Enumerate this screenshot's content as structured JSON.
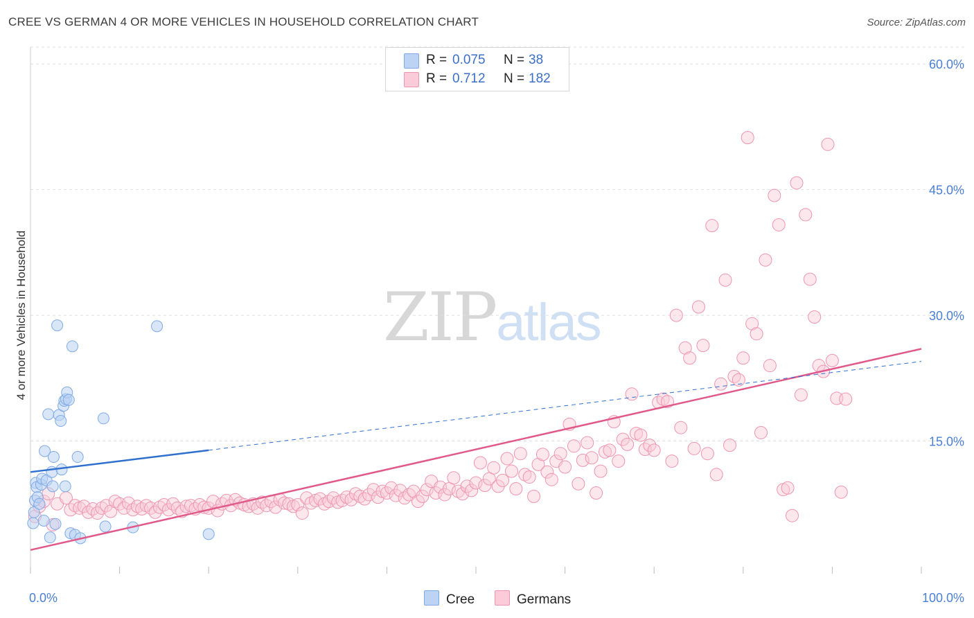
{
  "title": "CREE VS GERMAN 4 OR MORE VEHICLES IN HOUSEHOLD CORRELATION CHART",
  "source": "Source: ZipAtlas.com",
  "watermark": {
    "zip": "ZIP",
    "atlas": "atlas"
  },
  "legend": {
    "rows": [
      {
        "r_label": "R =",
        "r_value": "0.075",
        "n_label": "N =",
        "n_value": "38",
        "color": "#a9c8f0"
      },
      {
        "r_label": "R =",
        "r_value": "0.712",
        "n_label": "N =",
        "n_value": "182",
        "color": "#f7b8cb"
      }
    ]
  },
  "bottom_legend": {
    "cree": "Cree",
    "germans": "Germans"
  },
  "colors": {
    "cree_fill": "#b9d2f3",
    "cree_stroke": "#7eaae6",
    "cree_line": "#2f6fcd",
    "german_fill": "#f9c9d7",
    "german_stroke": "#ee94b0",
    "german_line": "#e0598a",
    "grid": "#dddddd",
    "tick_text": "#4a7fd4"
  },
  "chart_data": {
    "type": "scatter",
    "ylabel": "4 or more Vehicles in Household",
    "xlim": [
      0,
      100
    ],
    "ylim": [
      0,
      62
    ],
    "x_tick_labels": [
      "0.0%",
      "100.0%"
    ],
    "y_ticks": [
      15,
      30,
      45,
      60
    ],
    "y_tick_labels": [
      "15.0%",
      "30.0%",
      "45.0%",
      "60.0%"
    ],
    "grid": true,
    "legend_position": "top-center",
    "series": [
      {
        "name": "Cree",
        "points": [
          [
            0.3,
            5.2
          ],
          [
            0.4,
            6.5
          ],
          [
            0.5,
            7.9
          ],
          [
            0.6,
            10.0
          ],
          [
            0.7,
            9.5
          ],
          [
            0.8,
            8.3
          ],
          [
            1.0,
            7.5
          ],
          [
            1.2,
            9.8
          ],
          [
            1.3,
            10.5
          ],
          [
            1.5,
            5.5
          ],
          [
            1.6,
            13.8
          ],
          [
            1.8,
            10.3
          ],
          [
            2.0,
            18.2
          ],
          [
            2.2,
            3.5
          ],
          [
            2.4,
            11.3
          ],
          [
            2.5,
            9.6
          ],
          [
            2.6,
            13.1
          ],
          [
            2.8,
            5.1
          ],
          [
            3.0,
            28.8
          ],
          [
            3.2,
            18.1
          ],
          [
            3.4,
            17.4
          ],
          [
            3.5,
            11.6
          ],
          [
            3.7,
            19.2
          ],
          [
            3.8,
            19.8
          ],
          [
            3.9,
            9.6
          ],
          [
            4.0,
            20.0
          ],
          [
            4.1,
            20.8
          ],
          [
            4.3,
            19.9
          ],
          [
            4.5,
            4.0
          ],
          [
            4.7,
            26.3
          ],
          [
            5.0,
            3.8
          ],
          [
            5.3,
            13.1
          ],
          [
            5.6,
            3.4
          ],
          [
            8.2,
            17.7
          ],
          [
            8.4,
            4.8
          ],
          [
            11.5,
            4.7
          ],
          [
            14.2,
            28.7
          ],
          [
            20.0,
            3.9
          ]
        ],
        "trend_solid": [
          [
            0,
            11.3
          ],
          [
            20,
            13.9
          ]
        ],
        "trend_dashed": [
          [
            20,
            13.9
          ],
          [
            100,
            24.5
          ]
        ]
      },
      {
        "name": "Germans",
        "points": [
          [
            0.5,
            6.0
          ],
          [
            1.0,
            7.2
          ],
          [
            1.5,
            7.8
          ],
          [
            2.0,
            8.7
          ],
          [
            2.5,
            5.0
          ],
          [
            3.0,
            7.5
          ],
          [
            4.0,
            8.2
          ],
          [
            4.5,
            6.8
          ],
          [
            5.0,
            7.3
          ],
          [
            5.5,
            7.0
          ],
          [
            6.0,
            7.2
          ],
          [
            6.5,
            6.5
          ],
          [
            7.0,
            6.9
          ],
          [
            7.5,
            6.4
          ],
          [
            8.0,
            7.0
          ],
          [
            8.5,
            7.3
          ],
          [
            9.0,
            6.6
          ],
          [
            9.5,
            7.8
          ],
          [
            10.0,
            7.5
          ],
          [
            10.5,
            7.0
          ],
          [
            11.0,
            7.6
          ],
          [
            11.5,
            6.8
          ],
          [
            12.0,
            7.2
          ],
          [
            12.5,
            6.9
          ],
          [
            13.0,
            7.3
          ],
          [
            13.5,
            7.0
          ],
          [
            14.0,
            6.5
          ],
          [
            14.5,
            7.1
          ],
          [
            15.0,
            7.4
          ],
          [
            15.5,
            6.8
          ],
          [
            16.0,
            7.5
          ],
          [
            16.5,
            7.0
          ],
          [
            17.0,
            6.6
          ],
          [
            17.5,
            7.2
          ],
          [
            18.0,
            7.3
          ],
          [
            18.5,
            6.9
          ],
          [
            19.0,
            7.4
          ],
          [
            19.5,
            7.1
          ],
          [
            20.0,
            7.0
          ],
          [
            20.5,
            7.8
          ],
          [
            21.0,
            6.7
          ],
          [
            21.5,
            7.5
          ],
          [
            22.0,
            7.9
          ],
          [
            22.5,
            7.3
          ],
          [
            23.0,
            8.0
          ],
          [
            23.5,
            7.6
          ],
          [
            24.0,
            7.4
          ],
          [
            24.5,
            7.2
          ],
          [
            25.0,
            7.5
          ],
          [
            25.5,
            7.0
          ],
          [
            26.0,
            7.7
          ],
          [
            26.5,
            7.3
          ],
          [
            27.0,
            7.8
          ],
          [
            27.5,
            7.1
          ],
          [
            28.0,
            8.0
          ],
          [
            28.5,
            7.6
          ],
          [
            29.0,
            7.5
          ],
          [
            29.5,
            7.2
          ],
          [
            30.0,
            7.4
          ],
          [
            30.5,
            6.4
          ],
          [
            31.0,
            8.2
          ],
          [
            31.5,
            7.6
          ],
          [
            32.0,
            7.9
          ],
          [
            32.5,
            8.1
          ],
          [
            33.0,
            7.5
          ],
          [
            33.5,
            7.8
          ],
          [
            34.0,
            8.2
          ],
          [
            34.5,
            7.7
          ],
          [
            35.0,
            7.9
          ],
          [
            35.5,
            8.3
          ],
          [
            36.0,
            8.0
          ],
          [
            36.5,
            8.7
          ],
          [
            37.0,
            8.4
          ],
          [
            37.5,
            8.1
          ],
          [
            38.0,
            8.6
          ],
          [
            38.5,
            9.2
          ],
          [
            39.0,
            8.3
          ],
          [
            39.5,
            9.0
          ],
          [
            40.0,
            8.8
          ],
          [
            40.5,
            9.4
          ],
          [
            41.0,
            8.5
          ],
          [
            41.5,
            9.1
          ],
          [
            42.0,
            8.2
          ],
          [
            42.5,
            8.6
          ],
          [
            43.0,
            9.0
          ],
          [
            43.5,
            7.8
          ],
          [
            44.0,
            8.4
          ],
          [
            44.5,
            9.2
          ],
          [
            45.0,
            10.2
          ],
          [
            45.5,
            8.8
          ],
          [
            46.0,
            9.5
          ],
          [
            46.5,
            8.6
          ],
          [
            47.0,
            9.3
          ],
          [
            47.5,
            10.6
          ],
          [
            48.0,
            9.0
          ],
          [
            48.5,
            8.7
          ],
          [
            49.0,
            9.6
          ],
          [
            49.5,
            9.1
          ],
          [
            50.0,
            10.0
          ],
          [
            50.5,
            12.4
          ],
          [
            51.0,
            9.7
          ],
          [
            51.5,
            10.5
          ],
          [
            52.0,
            11.8
          ],
          [
            52.5,
            9.6
          ],
          [
            53.0,
            10.3
          ],
          [
            53.5,
            12.9
          ],
          [
            54.0,
            11.4
          ],
          [
            54.5,
            9.3
          ],
          [
            55.0,
            13.5
          ],
          [
            55.5,
            11.0
          ],
          [
            56.0,
            10.7
          ],
          [
            56.5,
            8.4
          ],
          [
            57.0,
            12.2
          ],
          [
            57.5,
            13.4
          ],
          [
            58.0,
            11.3
          ],
          [
            58.5,
            10.4
          ],
          [
            59.0,
            12.6
          ],
          [
            59.5,
            13.5
          ],
          [
            60.0,
            11.9
          ],
          [
            60.5,
            17.0
          ],
          [
            61.0,
            14.4
          ],
          [
            61.5,
            9.9
          ],
          [
            62.0,
            12.7
          ],
          [
            62.5,
            14.8
          ],
          [
            63.0,
            13.0
          ],
          [
            63.5,
            8.8
          ],
          [
            64.0,
            11.4
          ],
          [
            64.5,
            13.7
          ],
          [
            65.0,
            13.9
          ],
          [
            65.5,
            17.3
          ],
          [
            66.0,
            12.6
          ],
          [
            66.5,
            15.2
          ],
          [
            67.0,
            14.6
          ],
          [
            67.5,
            20.6
          ],
          [
            68.0,
            15.9
          ],
          [
            68.5,
            15.7
          ],
          [
            69.0,
            14.0
          ],
          [
            69.5,
            14.5
          ],
          [
            70.0,
            13.9
          ],
          [
            70.5,
            19.6
          ],
          [
            71.0,
            20.0
          ],
          [
            71.5,
            19.7
          ],
          [
            72.0,
            12.6
          ],
          [
            72.5,
            30.0
          ],
          [
            73.0,
            16.6
          ],
          [
            73.5,
            26.1
          ],
          [
            74.0,
            24.9
          ],
          [
            74.5,
            14.1
          ],
          [
            75.0,
            31.0
          ],
          [
            75.5,
            26.4
          ],
          [
            76.0,
            13.5
          ],
          [
            76.5,
            40.7
          ],
          [
            77.0,
            11.0
          ],
          [
            77.5,
            21.8
          ],
          [
            78.0,
            34.2
          ],
          [
            78.5,
            14.5
          ],
          [
            79.0,
            22.7
          ],
          [
            79.5,
            22.3
          ],
          [
            80.0,
            24.9
          ],
          [
            80.5,
            51.2
          ],
          [
            81.0,
            29.0
          ],
          [
            81.5,
            27.8
          ],
          [
            82.0,
            16.0
          ],
          [
            82.5,
            36.6
          ],
          [
            83.0,
            24.0
          ],
          [
            83.5,
            44.3
          ],
          [
            84.0,
            40.8
          ],
          [
            84.5,
            9.2
          ],
          [
            85.0,
            9.4
          ],
          [
            85.5,
            6.1
          ],
          [
            86.0,
            45.8
          ],
          [
            86.5,
            20.5
          ],
          [
            87.0,
            42.0
          ],
          [
            87.5,
            34.3
          ],
          [
            88.0,
            29.8
          ],
          [
            88.5,
            24.0
          ],
          [
            89.0,
            23.3
          ],
          [
            89.5,
            50.4
          ],
          [
            90.0,
            24.6
          ],
          [
            90.5,
            20.1
          ],
          [
            91.0,
            8.9
          ],
          [
            91.5,
            20.0
          ]
        ],
        "trend_solid": [
          [
            0,
            2.0
          ],
          [
            100,
            26.0
          ]
        ]
      }
    ]
  }
}
